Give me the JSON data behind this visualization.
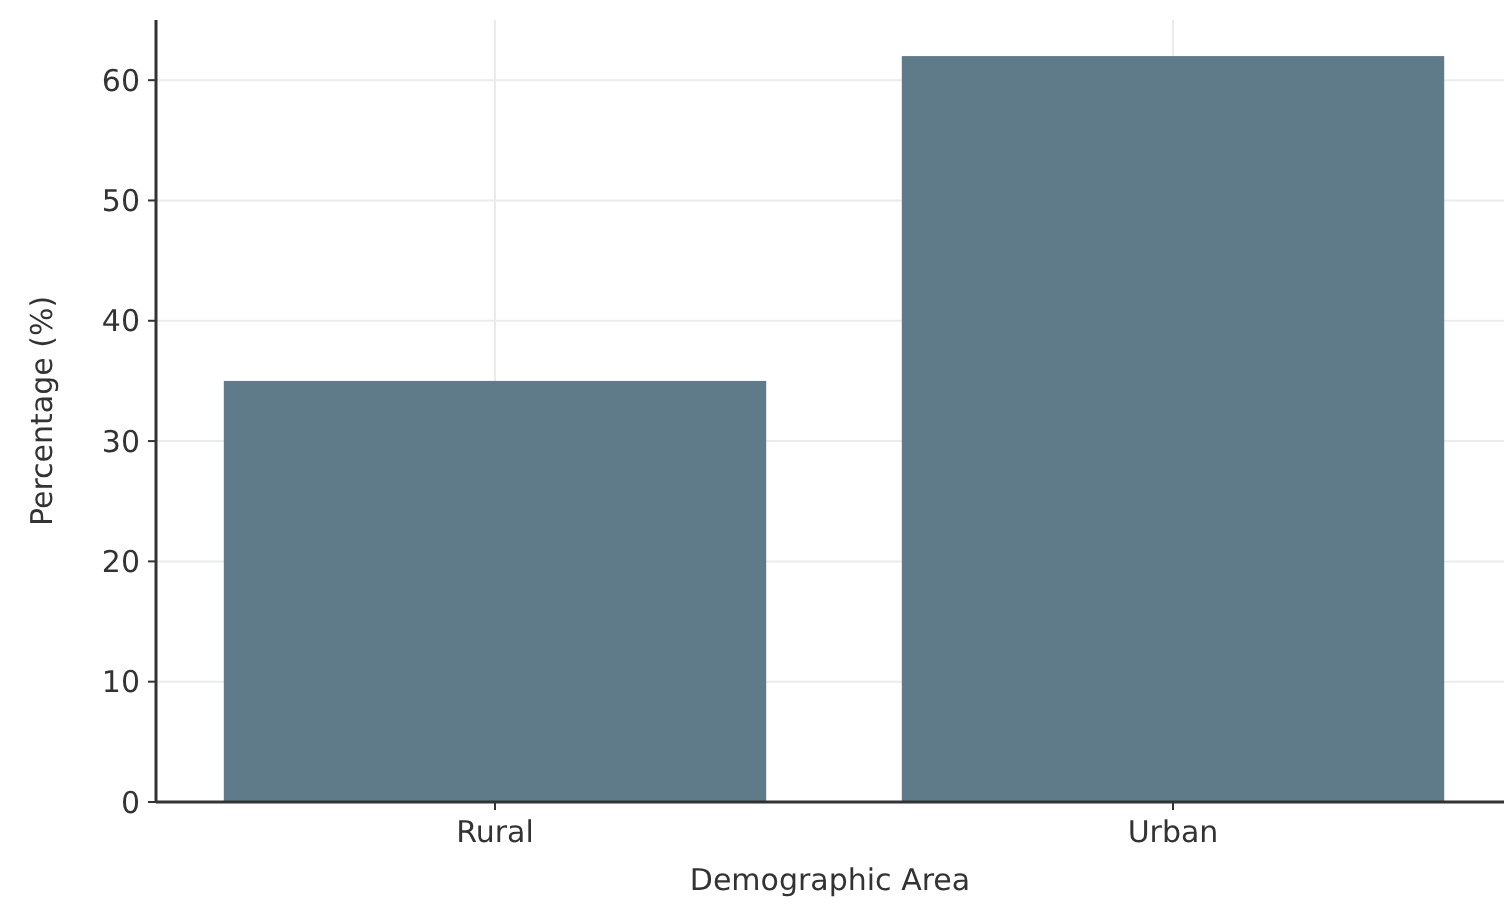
{
  "chart_data": {
    "type": "bar",
    "xlabel": "Demographic Area",
    "ylabel": "Percentage (%)",
    "categories": [
      "Rural",
      "Urban"
    ],
    "values": [
      35,
      62
    ],
    "color": "#5f7a89",
    "ylim": [
      0,
      65
    ],
    "yticks": [
      0,
      10,
      20,
      30,
      40,
      50,
      60
    ],
    "grid": true
  }
}
